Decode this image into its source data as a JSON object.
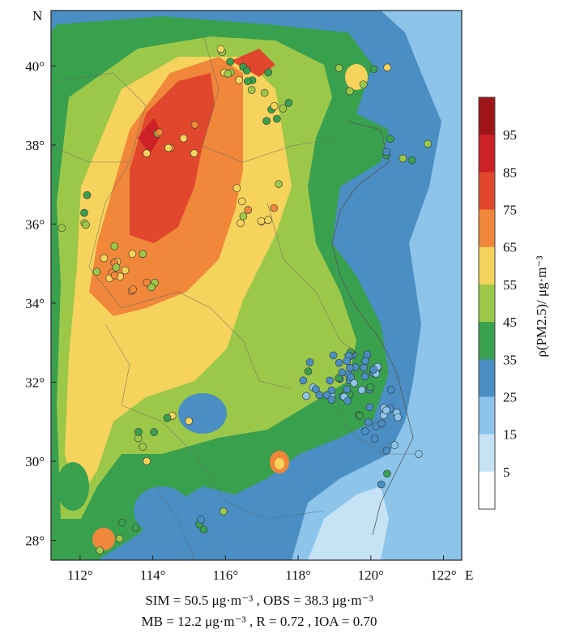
{
  "map": {
    "north_label": "N",
    "east_label": "E",
    "x_ticks": [
      "112°",
      "114°",
      "116°",
      "118°",
      "120°",
      "122°"
    ],
    "y_ticks": [
      "28°",
      "30°",
      "32°",
      "34°",
      "36°",
      "38°",
      "40°"
    ],
    "lon_range": [
      111.2,
      122.5
    ],
    "lat_range": [
      27.5,
      41.4
    ]
  },
  "colorbar": {
    "label": "ρ(PM2.5)/ μg·m⁻³",
    "ticks": [
      "5",
      "15",
      "25",
      "35",
      "45",
      "55",
      "65",
      "75",
      "85",
      "95"
    ],
    "colors": [
      "#ffffff",
      "#c6e3f6",
      "#8cc4ea",
      "#4a8ec4",
      "#39a04e",
      "#9cc84a",
      "#f6d35c",
      "#f0873a",
      "#e0472d",
      "#cc2126",
      "#9e1518"
    ]
  },
  "stats": {
    "line1": "SIM = 50.5 μg·m⁻³ , OBS = 38.3 μg·m⁻³",
    "line2": "MB = 12.2 μg·m⁻³ , R = 0.72 , IOA = 0.70"
  }
}
